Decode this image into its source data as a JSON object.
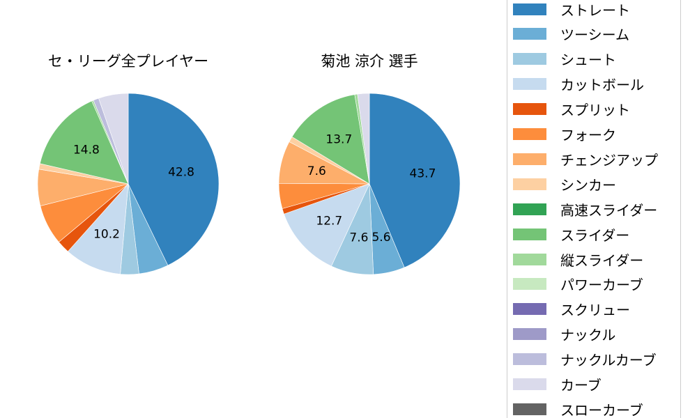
{
  "chart_data": [
    {
      "type": "pie",
      "title": "セ・リーグ全プレイヤー",
      "values": [
        42.8,
        5.3,
        3.3,
        10.2,
        2.3,
        7.2,
        6.5,
        1.0,
        0,
        14.8,
        0.3,
        0,
        0,
        0,
        1.0,
        5.3,
        0
      ],
      "labels_shown": {
        "0": "42.8",
        "3": "10.2",
        "9": "14.8"
      }
    },
    {
      "type": "pie",
      "title": "菊池 涼介  選手",
      "values": [
        43.7,
        5.6,
        7.6,
        12.7,
        1.0,
        4.5,
        7.6,
        1.0,
        0,
        13.7,
        0.5,
        0,
        0,
        0,
        0,
        2.1,
        0
      ],
      "labels_shown": {
        "0": "43.7",
        "1": "5.6",
        "2": "7.6",
        "3": "12.7",
        "6": "7.6",
        "9": "13.7"
      }
    }
  ],
  "legend": {
    "placement": "right",
    "items": [
      {
        "label": "ストレート",
        "color": "#3182bd"
      },
      {
        "label": "ツーシーム",
        "color": "#6baed6"
      },
      {
        "label": "シュート",
        "color": "#9ecae1"
      },
      {
        "label": "カットボール",
        "color": "#c6dbef"
      },
      {
        "label": "スプリット",
        "color": "#e6550d"
      },
      {
        "label": "フォーク",
        "color": "#fd8d3c"
      },
      {
        "label": "チェンジアップ",
        "color": "#fdae6b"
      },
      {
        "label": "シンカー",
        "color": "#fdd0a2"
      },
      {
        "label": "高速スライダー",
        "color": "#31a354"
      },
      {
        "label": "スライダー",
        "color": "#74c476"
      },
      {
        "label": "縦スライダー",
        "color": "#a1d99b"
      },
      {
        "label": "パワーカーブ",
        "color": "#c7e9c0"
      },
      {
        "label": "スクリュー",
        "color": "#756bb1"
      },
      {
        "label": "ナックル",
        "color": "#9e9ac8"
      },
      {
        "label": "ナックルカーブ",
        "color": "#bcbddc"
      },
      {
        "label": "カーブ",
        "color": "#dadaeb"
      },
      {
        "label": "スローカーブ",
        "color": "#636363"
      }
    ]
  }
}
